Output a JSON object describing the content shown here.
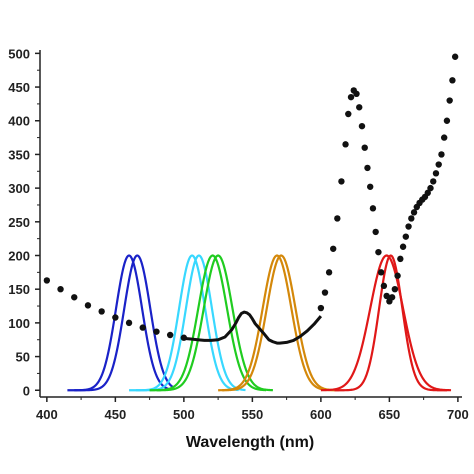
{
  "chart_data": {
    "type": "line",
    "title": "",
    "xlabel": "Wavelength (nm)",
    "ylabel": "",
    "xlim": [
      395,
      703
    ],
    "ylim": [
      -10,
      505
    ],
    "x_ticks": [
      400,
      450,
      500,
      550,
      600,
      650,
      700
    ],
    "y_ticks": [
      0,
      50,
      100,
      150,
      200,
      250,
      300,
      350,
      400,
      450,
      500
    ],
    "y_tick_labels": [
      "0",
      "50",
      "100",
      "150",
      "200",
      "250",
      "300",
      "350",
      "400",
      "450",
      "500"
    ],
    "grid": false,
    "legend": "none",
    "series": [
      {
        "kind": "gauss",
        "center": 460,
        "sigma": 9.5,
        "amp": 200,
        "range": [
          415,
          490
        ],
        "color": "#1a22c8"
      },
      {
        "kind": "gauss",
        "center": 466,
        "sigma": 9.5,
        "amp": 200,
        "range": [
          420,
          492
        ],
        "color": "#1a22c8"
      },
      {
        "kind": "gauss",
        "center": 506,
        "sigma": 9.5,
        "amp": 200,
        "range": [
          460,
          540
        ],
        "color": "#38d8ff"
      },
      {
        "kind": "gauss",
        "center": 511,
        "sigma": 9.5,
        "amp": 200,
        "range": [
          465,
          545
        ],
        "color": "#38d8ff"
      },
      {
        "kind": "gauss",
        "center": 521,
        "sigma": 10.5,
        "amp": 200,
        "range": [
          475,
          560
        ],
        "color": "#20cc20"
      },
      {
        "kind": "gauss",
        "center": 525,
        "sigma": 10.5,
        "amp": 200,
        "range": [
          480,
          565
        ],
        "color": "#20cc20"
      },
      {
        "kind": "gauss",
        "center": 568,
        "sigma": 10.5,
        "amp": 200,
        "range": [
          525,
          610
        ],
        "color": "#d4880a"
      },
      {
        "kind": "gauss",
        "center": 571,
        "sigma": 10.5,
        "amp": 200,
        "range": [
          528,
          613
        ],
        "color": "#d4880a"
      },
      {
        "kind": "gauss",
        "center": 648,
        "sigma": 12,
        "amp": 200,
        "range": [
          600,
          695
        ],
        "color": "#e01818"
      },
      {
        "kind": "gauss",
        "center": 651,
        "sigma": 8.5,
        "amp": 200,
        "range": [
          610,
          692
        ],
        "color": "#e01818"
      },
      {
        "kind": "line",
        "color": "#111111",
        "x": [
          500,
          505,
          510,
          515,
          520,
          525,
          530,
          535,
          538,
          540,
          542,
          544,
          546,
          548,
          550,
          552,
          555,
          558,
          560,
          562,
          565,
          568,
          570,
          575,
          580,
          585,
          590,
          595,
          600
        ],
        "y": [
          77,
          76,
          75,
          74,
          74,
          75,
          79,
          90,
          100,
          108,
          114,
          116,
          115,
          112,
          106,
          99,
          92,
          85,
          80,
          75,
          72,
          70,
          70,
          71,
          74,
          80,
          88,
          98,
          110
        ]
      },
      {
        "kind": "scatter",
        "color": "#111111",
        "x": [
          400,
          410,
          420,
          430,
          440,
          450,
          460,
          470,
          480,
          490,
          500,
          600,
          603,
          606,
          609,
          612,
          615,
          618,
          620,
          622,
          624,
          626,
          628,
          630,
          632,
          634,
          636,
          638,
          640,
          642,
          644,
          646,
          648,
          650,
          652,
          654,
          656,
          658,
          660,
          662,
          664,
          666,
          668,
          670,
          672,
          674,
          676,
          678,
          680,
          682,
          684,
          686,
          688,
          690,
          692,
          694,
          696,
          698
        ],
        "y": [
          163,
          150,
          138,
          126,
          117,
          108,
          100,
          93,
          87,
          82,
          78,
          122,
          145,
          175,
          210,
          255,
          310,
          365,
          410,
          435,
          445,
          440,
          420,
          392,
          360,
          330,
          302,
          270,
          235,
          205,
          175,
          155,
          140,
          132,
          138,
          150,
          170,
          195,
          213,
          228,
          243,
          255,
          264,
          272,
          278,
          283,
          287,
          293,
          300,
          310,
          322,
          335,
          350,
          375,
          400,
          430,
          460,
          495
        ]
      }
    ]
  }
}
